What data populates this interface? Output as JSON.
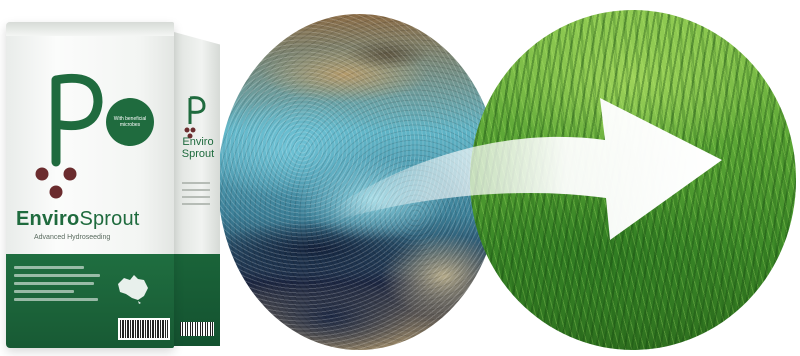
{
  "product": {
    "brand_part1": "Enviro",
    "brand_part2": "Sprout",
    "tagline": "Advanced Hydroseeding",
    "badge_text": "With beneficial microbes",
    "side_brand_line1": "Enviro",
    "side_brand_line2": "Sprout"
  },
  "scene": {
    "before_image": "hydroseeded-soil-photo",
    "after_image": "green-grass-lawn-photo",
    "arrow_direction": "right"
  },
  "colors": {
    "brand_green": "#1f6b3e",
    "dot_brown": "#6b2c2e",
    "arrow_white": "#ffffff"
  }
}
